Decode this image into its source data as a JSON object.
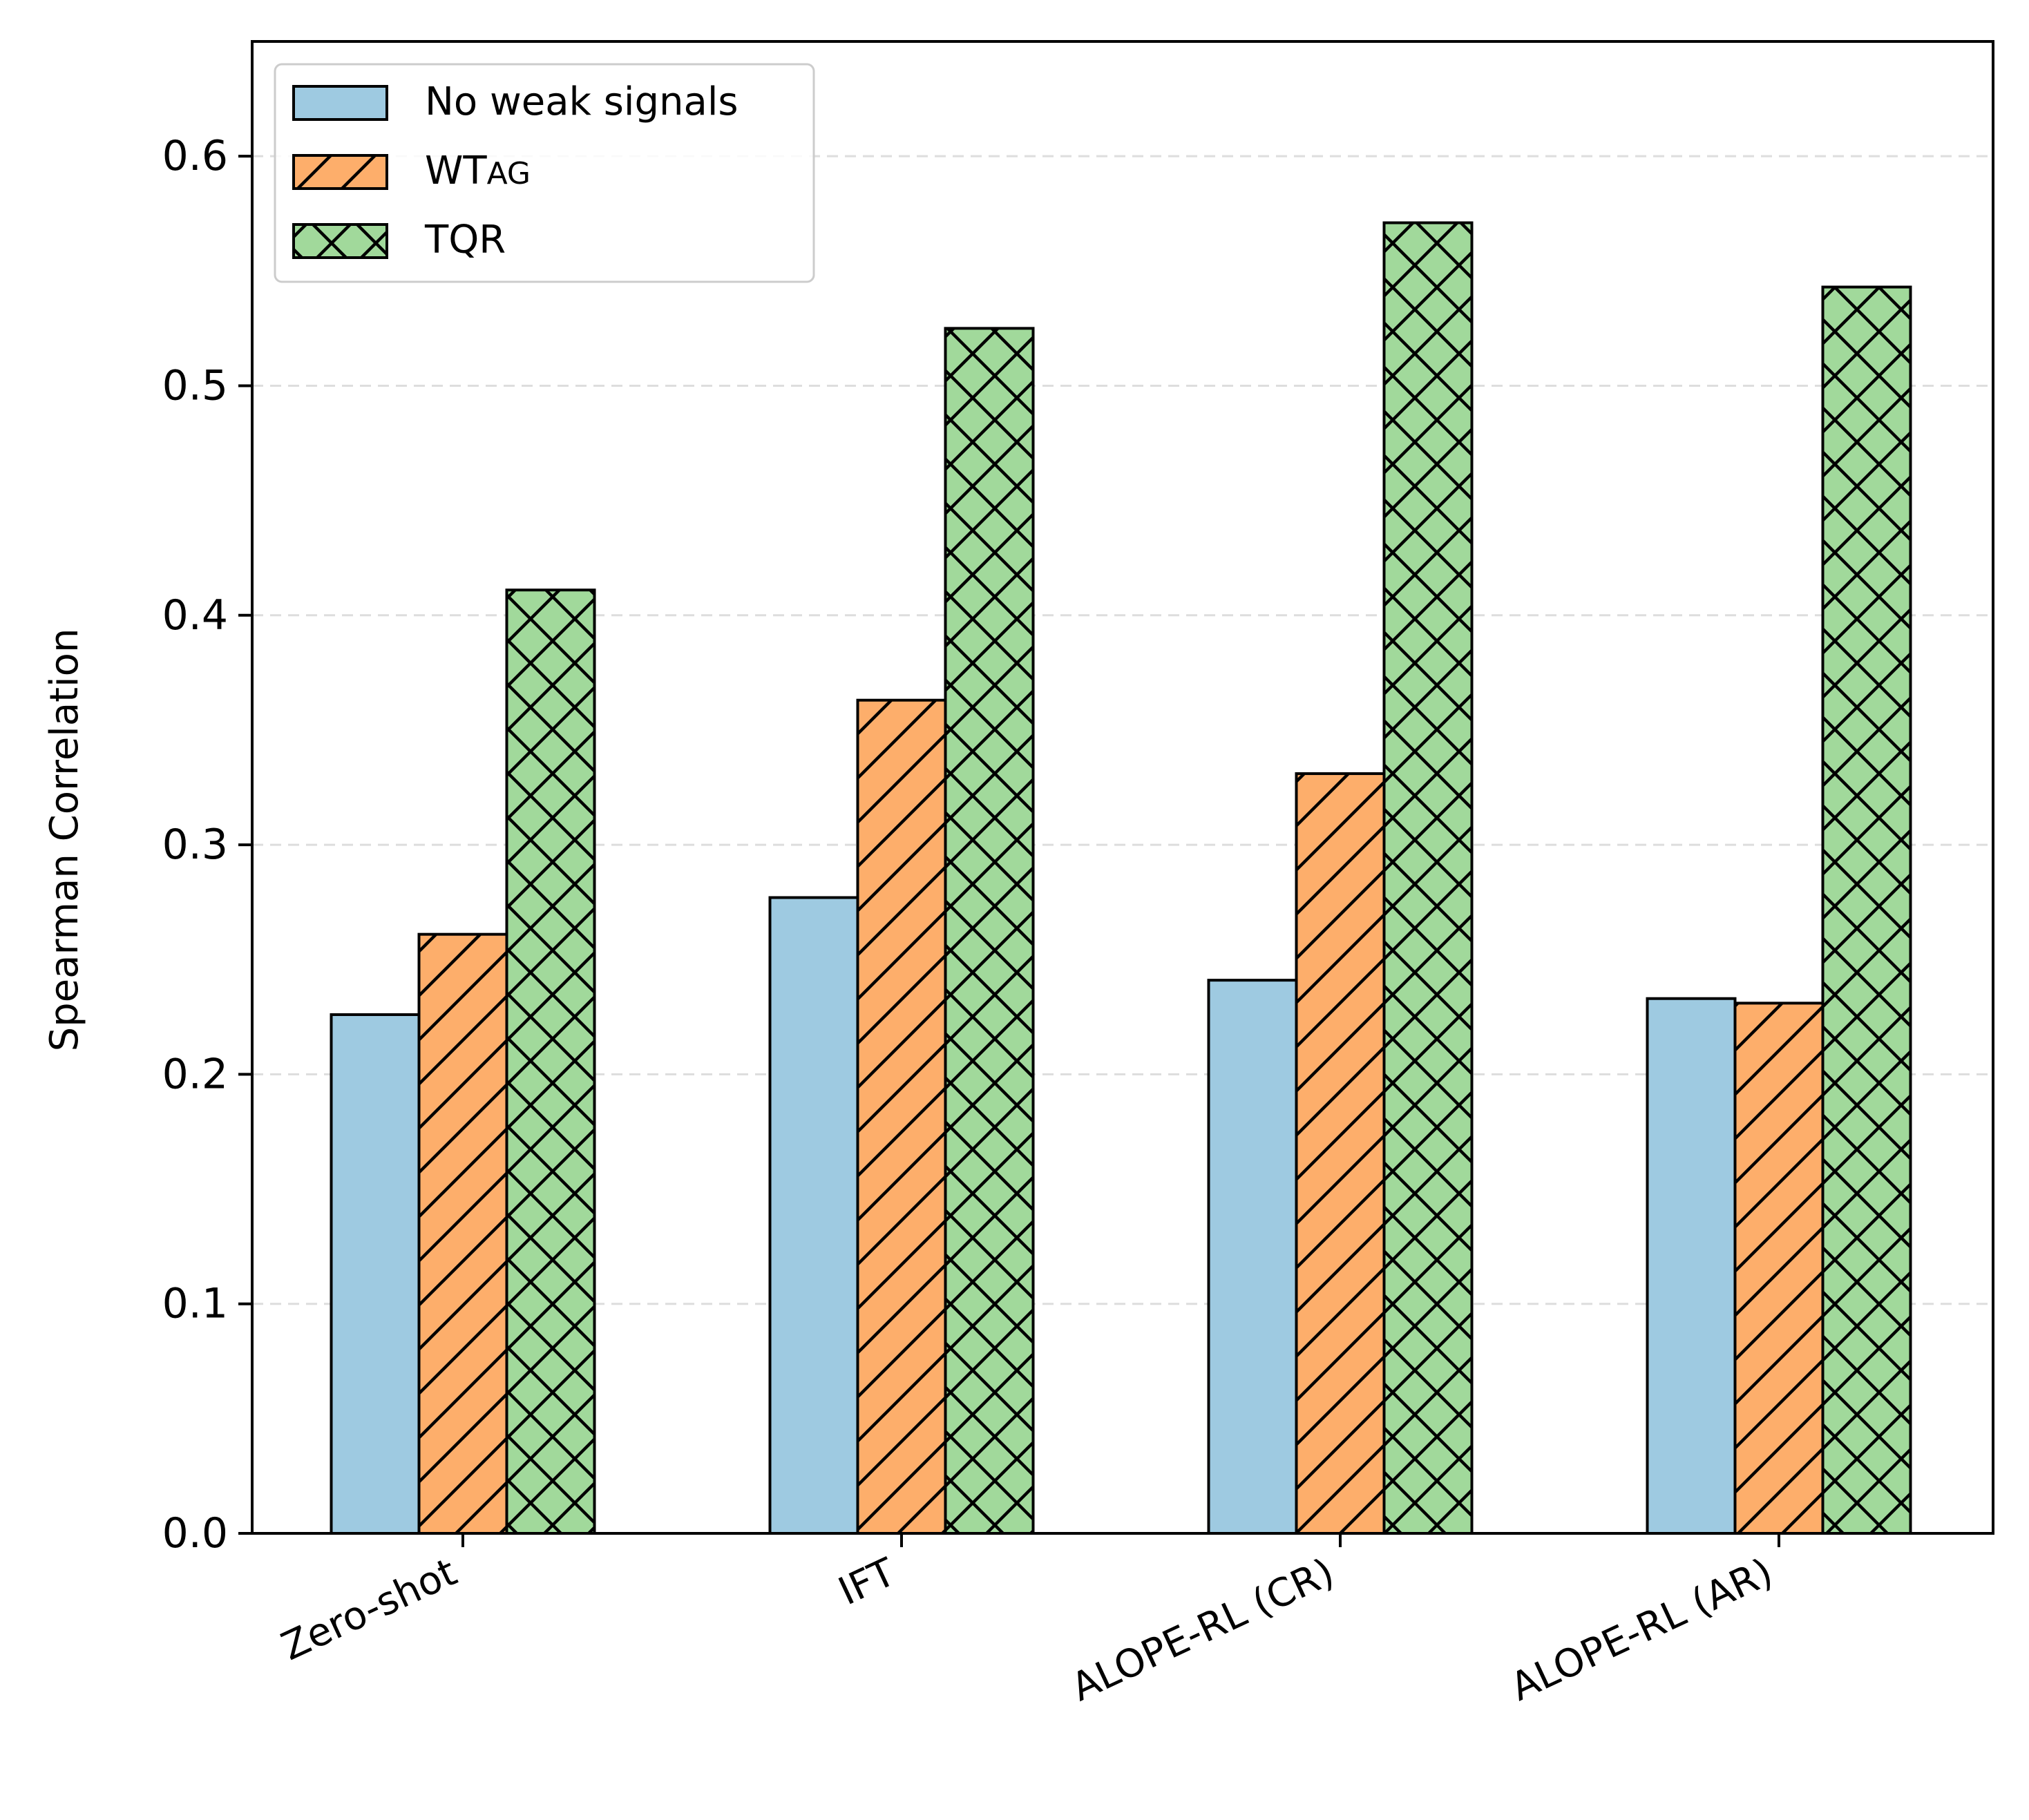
{
  "chart_data": {
    "type": "bar",
    "title": "",
    "xlabel": "",
    "ylabel": "Spearman Correlation",
    "categories": [
      "Zero-shot",
      "IFT",
      "ALOPE-RL (CR)",
      "ALOPE-RL (AR)"
    ],
    "series": [
      {
        "name": "No weak signals",
        "color": "#9ecae1",
        "hatch": "none",
        "values": [
          0.226,
          0.277,
          0.241,
          0.233
        ]
      },
      {
        "name": "WTag",
        "color": "#fdae6b",
        "hatch": "diagonal",
        "values": [
          0.261,
          0.363,
          0.331,
          0.231
        ]
      },
      {
        "name": "TQR",
        "color": "#a1d99b",
        "hatch": "cross",
        "values": [
          0.411,
          0.525,
          0.571,
          0.543
        ]
      }
    ],
    "ylim": [
      0,
      0.65
    ],
    "yticks": [
      0.0,
      0.1,
      0.2,
      0.3,
      0.4,
      0.5,
      0.6
    ],
    "ytick_labels": [
      "0.0",
      "0.1",
      "0.2",
      "0.3",
      "0.4",
      "0.5",
      "0.6"
    ],
    "grid": "y-dashed",
    "legend_location": "upper-left"
  }
}
